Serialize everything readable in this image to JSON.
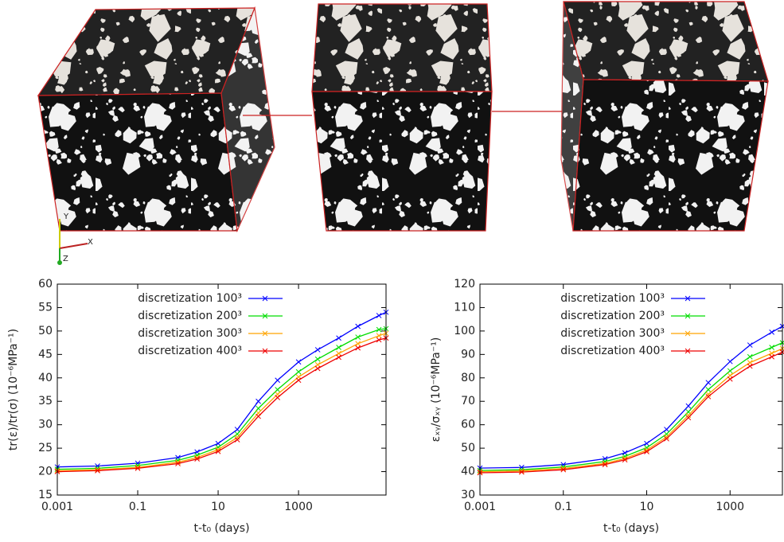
{
  "axis_triad": {
    "x": "X",
    "y": "Y",
    "z": "Z"
  },
  "chart_data": [
    {
      "type": "line",
      "xlabel": "t-t₀ (days)",
      "ylabel": "tr(ε)/tr(σ) (10⁻⁶MPa⁻¹)",
      "x": [
        0.001,
        0.01,
        0.1,
        1,
        3,
        10,
        30,
        100,
        300,
        1000,
        3000,
        10000,
        30000,
        100000,
        150000
      ],
      "log_x": true,
      "xlim": [
        0.001,
        150000
      ],
      "xticks": [
        0.001,
        0.1,
        10,
        1000
      ],
      "ylim": [
        15,
        60
      ],
      "yticks": [
        15,
        20,
        25,
        30,
        35,
        40,
        45,
        50,
        55,
        60
      ],
      "legend": "upper left",
      "series": [
        {
          "name": "discretization 100³",
          "color": "#0000ff",
          "values": [
            21,
            21.2,
            21.8,
            23,
            24.2,
            26,
            29,
            35,
            39.5,
            43.4,
            46,
            48.5,
            51,
            53.3,
            54
          ]
        },
        {
          "name": "discretization 200³",
          "color": "#00dd00",
          "values": [
            20.5,
            20.7,
            21.3,
            22.4,
            23.5,
            25.2,
            28,
            33.5,
            37.5,
            41.3,
            44,
            46.5,
            48.7,
            50.3,
            50.5
          ]
        },
        {
          "name": "discretization 300³",
          "color": "#ffa500",
          "values": [
            20.2,
            20.4,
            20.9,
            22,
            23,
            24.7,
            27.3,
            32.5,
            36.5,
            40.2,
            42.8,
            45.2,
            47.3,
            49,
            49.5
          ]
        },
        {
          "name": "discretization 400³",
          "color": "#ee0000",
          "values": [
            20,
            20.2,
            20.7,
            21.7,
            22.7,
            24.3,
            26.8,
            31.8,
            35.8,
            39.5,
            42,
            44.4,
            46.4,
            48.1,
            48.5
          ]
        }
      ]
    },
    {
      "type": "line",
      "xlabel": "t-t₀ (days)",
      "ylabel": "εₓᵧ/σₓᵧ (10⁻⁶MPa⁻¹)",
      "x": [
        0.001,
        0.01,
        0.1,
        1,
        3,
        10,
        30,
        100,
        300,
        1000,
        3000,
        10000,
        18000
      ],
      "log_x": true,
      "xlim": [
        0.001,
        18000
      ],
      "xticks": [
        0.001,
        0.1,
        10,
        1000
      ],
      "ylim": [
        30,
        120
      ],
      "yticks": [
        30,
        40,
        50,
        60,
        70,
        80,
        90,
        100,
        110,
        120
      ],
      "legend": "upper left",
      "series": [
        {
          "name": "discretization 100³",
          "color": "#0000ff",
          "values": [
            41.5,
            41.8,
            43,
            45.5,
            48,
            52,
            58,
            68,
            78,
            87,
            94,
            99.5,
            102
          ]
        },
        {
          "name": "discretization 200³",
          "color": "#00dd00",
          "values": [
            40.5,
            40.8,
            42,
            44.3,
            46.5,
            50.2,
            56,
            65.5,
            75,
            83,
            89,
            93,
            95
          ]
        },
        {
          "name": "discretization 300³",
          "color": "#ffa500",
          "values": [
            40,
            40.3,
            41.3,
            43.5,
            45.6,
            49.2,
            54.8,
            64,
            73,
            81,
            86.5,
            90.5,
            92.5
          ]
        },
        {
          "name": "discretization 400³",
          "color": "#ee0000",
          "values": [
            39.5,
            39.8,
            40.8,
            43,
            45,
            48.5,
            54,
            63,
            72,
            79.5,
            85,
            89,
            91
          ]
        }
      ]
    }
  ]
}
